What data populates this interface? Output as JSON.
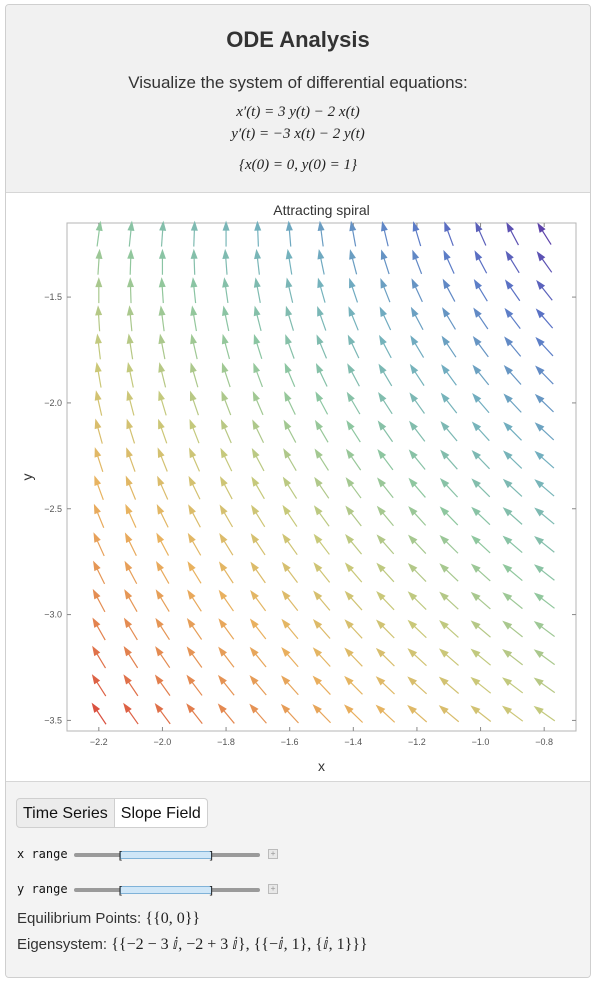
{
  "header": {
    "title": "ODE Analysis",
    "subtitle": "Visualize the system of differential equations:",
    "equation_1": "x′(t) = 3 y(t) − 2 x(t)",
    "equation_2": "y′(t) = −3 x(t) − 2 y(t)",
    "initial_conditions": "{x(0) = 0, y(0) = 1}"
  },
  "chart_data": {
    "type": "vector_field",
    "title": "Attracting spiral",
    "xlabel": "x",
    "ylabel": "y",
    "xlim": [
      -2.3,
      -0.7
    ],
    "ylim": [
      -3.55,
      -1.15
    ],
    "xticks": [
      -2.2,
      -2.0,
      -1.8,
      -1.6,
      -1.4,
      -1.2,
      -1.0,
      -0.8
    ],
    "xtick_labels": [
      "−2.2",
      "−2.0",
      "−1.8",
      "−1.6",
      "−1.4",
      "−1.2",
      "−1.0",
      "−0.8"
    ],
    "yticks": [
      -1.5,
      -2.0,
      -2.5,
      -3.0,
      -3.5
    ],
    "ytick_labels": [
      "−1.5",
      "−2.0",
      "−2.5",
      "−3.0",
      "−3.5"
    ],
    "field": {
      "dx": "3*y - 2*x",
      "dy": "-3*x - 2*y"
    },
    "grid_x": [
      -2.2,
      -2.1,
      -2.0,
      -1.9,
      -1.8,
      -1.7,
      -1.6,
      -1.5,
      -1.4,
      -1.3,
      -1.2,
      -1.1,
      -1.0,
      -0.9,
      -0.8
    ],
    "grid_y": [
      -1.2,
      -1.333,
      -1.467,
      -1.6,
      -1.733,
      -1.867,
      -2.0,
      -2.133,
      -2.267,
      -2.4,
      -2.533,
      -2.667,
      -2.8,
      -2.933,
      -3.067,
      -3.2,
      -3.333,
      -3.467
    ],
    "colormap": [
      "#5e2e9e",
      "#5a78c8",
      "#72b0bf",
      "#8ec79f",
      "#c8c97a",
      "#e9b25f",
      "#e3844f",
      "#d63a3a"
    ],
    "grid": false
  },
  "controls": {
    "tabs": [
      {
        "label": "Time Series",
        "active": false
      },
      {
        "label": "Slope Field",
        "active": true
      }
    ],
    "sliders": [
      {
        "label": "x range",
        "range_fraction": [
          0.25,
          0.74
        ]
      },
      {
        "label": "y range",
        "range_fraction": [
          0.25,
          0.74
        ]
      }
    ],
    "equilibrium_label": "Equilibrium Points:",
    "equilibrium_value": "{{0, 0}}",
    "eigensystem_label": "Eigensystem:",
    "eigensystem_value": "{{−2 − 3 ⅈ, −2 + 3 ⅈ}, {{−ⅈ, 1}, {ⅈ, 1}}}"
  }
}
